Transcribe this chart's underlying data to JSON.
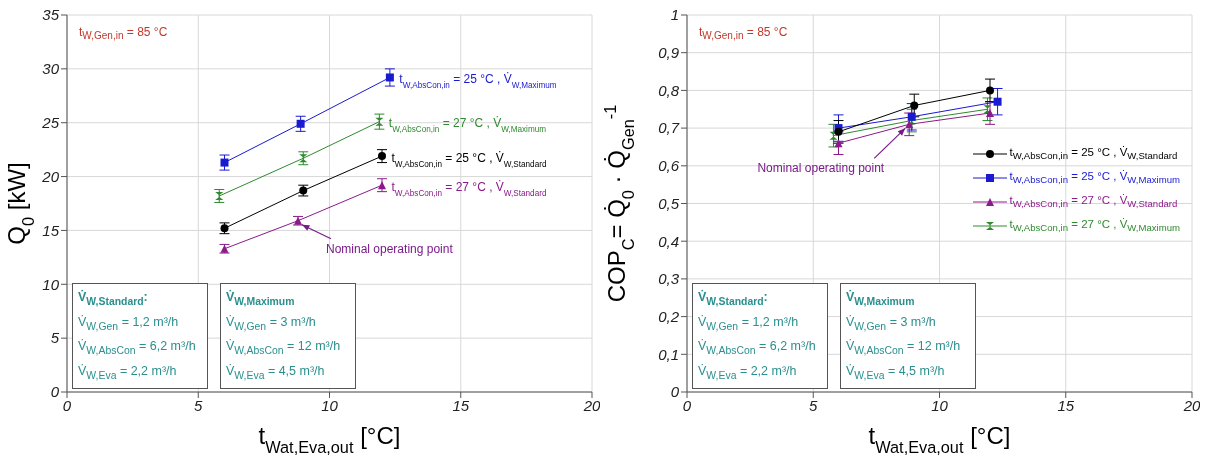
{
  "chart_data": [
    {
      "type": "line",
      "xlabel": "t$_{Wat,Eva,out}$ [°C]",
      "ylabel": "Q$_{0}$ [kW]",
      "xlim": [
        0,
        20
      ],
      "xticks": [
        0,
        5,
        10,
        15,
        20
      ],
      "ylim": [
        0,
        35
      ],
      "yticks": [
        0,
        5,
        10,
        15,
        20,
        25,
        30,
        35
      ],
      "grid": true,
      "legend": false,
      "series": [
        {
          "name": "t$_{W,AbsCon,in}$ = 25 °C , V̇$_{W,Maximum}$",
          "color": "#1a1ad0",
          "marker": "square",
          "x": [
            6,
            8.9,
            12.3
          ],
          "values": [
            21.3,
            24.9,
            29.2
          ],
          "errors": [
            0.7,
            0.7,
            0.8
          ]
        },
        {
          "name": "t$_{W,AbsCon,in}$ = 27 °C , V̇$_{W,Maximum}$",
          "color": "#2e8b2e",
          "marker": "cross",
          "x": [
            5.8,
            9,
            11.9
          ],
          "values": [
            18.2,
            21.7,
            25.1
          ],
          "errors": [
            0.6,
            0.6,
            0.7
          ]
        },
        {
          "name": "t$_{W,AbsCon,in}$ = 25 °C , V̇$_{W,Standard}$",
          "color": "#000000",
          "marker": "circle",
          "x": [
            6,
            9,
            12
          ],
          "values": [
            15.2,
            18.7,
            21.9
          ],
          "errors": [
            0.5,
            0.5,
            0.6
          ]
        },
        {
          "name": "t$_{W,AbsCon,in}$ = 27 °C , V̇$_{W,Standard}$",
          "color": "#8b1a8b",
          "marker": "triangle",
          "x": [
            6,
            8.8,
            12
          ],
          "values": [
            13.3,
            15.9,
            19.2
          ],
          "errors": [
            0.4,
            0.4,
            0.6
          ]
        }
      ],
      "annotations": [
        "t$_{W,Gen,in}$ = 85 °C",
        {
          "text": "Nominal operating point",
          "x": 8.8,
          "y": 15.9
        },
        "V̇$_{W,Standard}$:",
        "V̇$_{W,Gen}$ = 1,2 m³/h",
        "V̇$_{W,AbsCon}$ = 6,2 m³/h",
        "V̇$_{W,Eva}$ = 2,2 m³/h",
        "V̇$_{W,Maximum}$",
        "V̇$_{W,Gen}$ = 3 m³/h",
        "V̇$_{W,AbsCon}$ = 12 m³/h",
        "V̇$_{W,Eva}$ = 4,5 m³/h"
      ]
    },
    {
      "type": "line",
      "xlabel": "t$_{Wat,Eva,out}$ [°C]",
      "ylabel": "COP$_{C}$= Q̇$_{0}$ · Q̇$_{Gen}$$^{-1}$",
      "xlim": [
        0,
        20
      ],
      "xticks": [
        0,
        5,
        10,
        15,
        20
      ],
      "ylim": [
        0,
        1
      ],
      "yticks": [
        0,
        {
          "value": 0.1,
          "label": "0,1"
        },
        {
          "value": 0.2,
          "label": "0,2"
        },
        {
          "value": 0.3,
          "label": "0,3"
        },
        {
          "value": 0.4,
          "label": "0,4"
        },
        {
          "value": 0.5,
          "label": "0,5"
        },
        {
          "value": 0.6,
          "label": "0,6"
        },
        {
          "value": 0.7,
          "label": "0,7"
        },
        {
          "value": 0.8,
          "label": "0,8"
        },
        {
          "value": 0.9,
          "label": "0,9"
        },
        1
      ],
      "grid": true,
      "legend": "right",
      "series": [
        {
          "name": "t$_{W,AbsCon,in}$ = 25 °C , V̇$_{W,Standard}$",
          "color": "#000000",
          "marker": "circle",
          "x": [
            6,
            9,
            12
          ],
          "values": [
            0.69,
            0.76,
            0.8
          ],
          "errors": [
            0.03,
            0.03,
            0.03
          ]
        },
        {
          "name": "t$_{W,AbsCon,in}$ = 25 °C , V̇$_{W,Maximum}$",
          "color": "#1a1ad0",
          "marker": "square",
          "x": [
            6,
            8.9,
            12.3
          ],
          "values": [
            0.7,
            0.73,
            0.77
          ],
          "errors": [
            0.035,
            0.035,
            0.035
          ]
        },
        {
          "name": "t$_{W,AbsCon,in}$ = 27 °C , V̇$_{W,Standard}$",
          "color": "#8b1a8b",
          "marker": "triangle",
          "x": [
            6,
            8.8,
            12
          ],
          "values": [
            0.66,
            0.71,
            0.74
          ],
          "errors": [
            0.03,
            0.03,
            0.03
          ]
        },
        {
          "name": "t$_{W,AbsCon,in}$ = 27 °C , V̇$_{W,Maximum}$",
          "color": "#2e8b2e",
          "marker": "cross",
          "x": [
            5.8,
            8.9,
            11.9
          ],
          "values": [
            0.68,
            0.72,
            0.75
          ],
          "errors": [
            0.03,
            0.03,
            0.03
          ]
        }
      ],
      "annotations": [
        "t$_{W,Gen,in}$ = 85 °C",
        {
          "text": "Nominal operating point",
          "x": 8.8,
          "y": 0.71
        },
        "V̇$_{W,Standard}$:",
        "V̇$_{W,Gen}$ = 1,2 m³/h",
        "V̇$_{W,AbsCon}$ = 6,2 m³/h",
        "V̇$_{W,Eva}$ = 2,2 m³/h",
        "V̇$_{W,Maximum}$",
        "V̇$_{W,Gen}$ = 3 m³/h",
        "V̇$_{W,AbsCon}$ = 12 m³/h",
        "V̇$_{W,Eva}$ = 4,5 m³/h"
      ]
    }
  ]
}
